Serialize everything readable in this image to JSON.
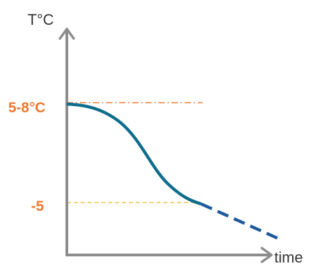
{
  "chart_data": {
    "type": "line",
    "ylabel": "T°C",
    "xlabel": "time",
    "y_tick_labels": [
      "5-8°C",
      "-5"
    ],
    "reference_lines": [
      {
        "label": "5-8°C",
        "style": "dash-dot",
        "color": "#f07830"
      },
      {
        "label": "-5",
        "style": "dashed",
        "color": "#f0c040"
      }
    ],
    "series": [
      {
        "style": "solid",
        "color": "#0e6e8c"
      },
      {
        "style": "dashed",
        "color": "#1f5a9e"
      }
    ],
    "grid": false,
    "legend": "none"
  },
  "colors": {
    "axis": "#8c8c8c",
    "curve": "#0e6e8c",
    "extrapolation": "#1f5a9e",
    "label_orange": "#f07830",
    "ref_yellow": "#f0c040"
  }
}
